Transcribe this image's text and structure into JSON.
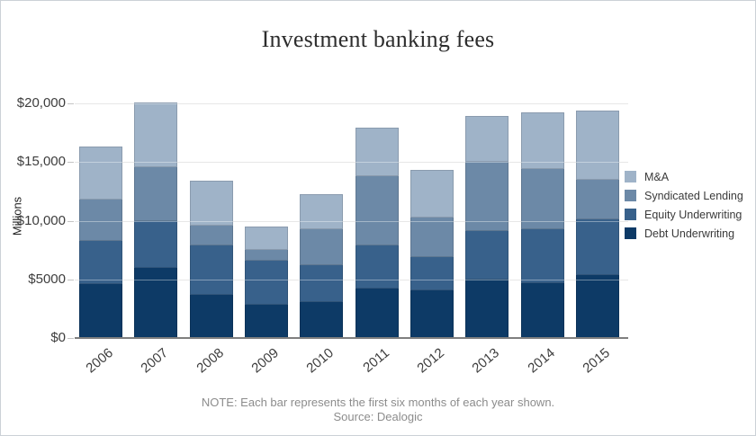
{
  "chart_data": {
    "type": "bar",
    "stacked": true,
    "title": "Investment banking fees",
    "ylabel": "Millions",
    "unit": "USD millions",
    "categories": [
      "2006",
      "2007",
      "2008",
      "2009",
      "2010",
      "2011",
      "2012",
      "2013",
      "2014",
      "2015"
    ],
    "series": [
      {
        "name": "Debt Underwriting",
        "color": "#0d3a66",
        "values": [
          4600,
          6000,
          3700,
          2800,
          3100,
          4200,
          4100,
          5000,
          4700,
          5400
        ]
      },
      {
        "name": "Equity Underwriting",
        "color": "#38618b",
        "values": [
          3700,
          4000,
          4200,
          3800,
          3100,
          3700,
          2800,
          4100,
          4600,
          4700
        ]
      },
      {
        "name": "Syndicated Lending",
        "color": "#6c89a7",
        "values": [
          3500,
          4600,
          1700,
          900,
          3100,
          5900,
          3400,
          5900,
          5100,
          3400
        ]
      },
      {
        "name": "M&A",
        "color": "#9fb3c8",
        "values": [
          4500,
          5500,
          3800,
          2000,
          3000,
          4100,
          4000,
          3900,
          4800,
          5900
        ]
      }
    ],
    "totals": [
      16300,
      20100,
      13400,
      9500,
      12300,
      17900,
      14300,
      18900,
      19200,
      19400
    ],
    "y_axis": {
      "max": 20000,
      "ticks": [
        {
          "value": 0,
          "label": "$0"
        },
        {
          "value": 5000,
          "label": "$5000"
        },
        {
          "value": 10000,
          "label": "$10,000"
        },
        {
          "value": 15000,
          "label": "$15,000"
        },
        {
          "value": 20000,
          "label": "$20,000"
        }
      ]
    },
    "grid": true,
    "legend_position": "right",
    "legend_order_top_to_bottom": [
      "M&A",
      "Syndicated Lending",
      "Equity Underwriting",
      "Debt Underwriting"
    ]
  },
  "colors": {
    "gridline": "#d9d9d9",
    "axis_line": "#7f7f7f",
    "tick_text": "#3d3d3d",
    "title_text": "#2d2d2d",
    "note_text": "#8c8c8c",
    "page_border": "#ccd1d7"
  },
  "note": {
    "line1": "NOTE: Each bar represents the first six months of each year shown.",
    "line2": "Source: Dealogic"
  }
}
